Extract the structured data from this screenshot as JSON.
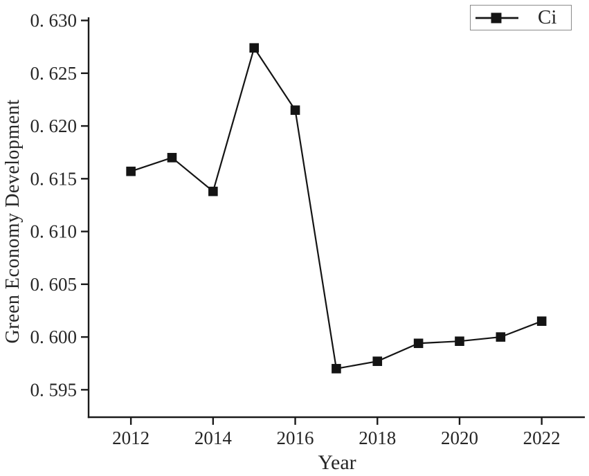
{
  "chart_data": {
    "type": "line",
    "title": "",
    "xlabel": "Year",
    "ylabel": "Green Economy Development",
    "x": [
      2012,
      2013,
      2014,
      2015,
      2016,
      2017,
      2018,
      2019,
      2020,
      2021,
      2022
    ],
    "series": [
      {
        "name": "Ci",
        "values": [
          0.6157,
          0.617,
          0.6138,
          0.6274,
          0.6215,
          0.597,
          0.5977,
          0.5994,
          0.5996,
          0.6,
          0.6015
        ],
        "color": "#141414",
        "marker": "square"
      }
    ],
    "x_ticks": [
      2012,
      2014,
      2016,
      2018,
      2020,
      2022
    ],
    "x_tick_labels": [
      "2012",
      "2014",
      "2016",
      "2018",
      "2020",
      "2022"
    ],
    "y_ticks": [
      0.595,
      0.6,
      0.605,
      0.61,
      0.615,
      0.62,
      0.625,
      0.63
    ],
    "y_tick_labels": [
      "0. 595",
      "0. 600",
      "0. 605",
      "0. 610",
      "0. 615",
      "0. 620",
      "0. 625",
      "0. 630"
    ],
    "xlim": [
      2010.97,
      2023.05
    ],
    "ylim": [
      0.5924,
      0.6303
    ],
    "grid": false,
    "legend": {
      "position": "top-right",
      "entries": [
        "Ci"
      ]
    },
    "axis_color": "#1a1a1a",
    "background": "#ffffff"
  }
}
